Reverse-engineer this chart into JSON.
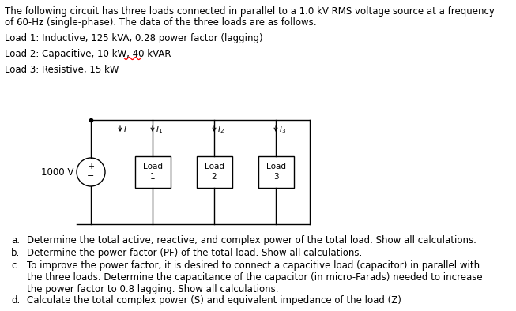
{
  "bg_color": "#ffffff",
  "text_color": "#000000",
  "title_lines": [
    "The following circuit has three loads connected in parallel to a 1.0 kV RMS voltage source at a frequency",
    "of 60-Hz (single-phase). The data of the three loads are as follows:"
  ],
  "load_lines": [
    "Load 1: Inductive, 125 kVA, 0.28 power factor (lagging)",
    "Load 2: Capacitive, 10 kW, 40 kVAR",
    "Load 3: Resistive, 15 kW"
  ],
  "load2_underline_color": "#ff0000",
  "source_label": "1000 V",
  "q_letters": [
    "a.",
    "b.",
    "c.",
    "d."
  ],
  "q_texts": [
    "Determine the total active, reactive, and complex power of the total load. Show all calculations.",
    "Determine the power factor (PF) of the total load. Show all calculations.",
    "To improve the power factor, it is desired to connect a capacitive load (capacitor) in parallel with\nthe three loads. Determine the capacitance of the capacitor (in micro-Farads) needed to increase\nthe power factor to 0.8 lagging. Show all calculations.",
    "Calculate the total complex power (S) and equivalent impedance of the load (Z)"
  ],
  "fontsize_main": 8.5,
  "fontsize_circuit": 7.5
}
